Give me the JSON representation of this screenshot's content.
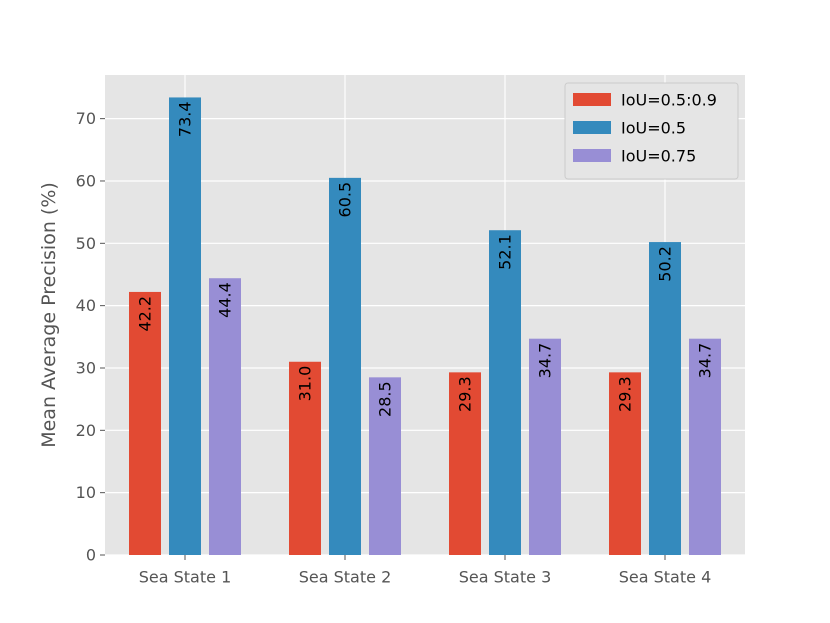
{
  "chart_data": {
    "type": "bar",
    "title": "",
    "xlabel": "",
    "ylabel": "Mean Average Precision (%)",
    "ylim": [
      0,
      77
    ],
    "yticks": [
      0,
      10,
      20,
      30,
      40,
      50,
      60,
      70
    ],
    "categories": [
      "Sea State 1",
      "Sea State 2",
      "Sea State 3",
      "Sea State 4"
    ],
    "series": [
      {
        "name": "IoU=0.5:0.9",
        "color": "#e24a33",
        "values": [
          42.2,
          31.0,
          29.3,
          29.3
        ],
        "labels": [
          "42.2",
          "31.0",
          "29.3",
          "29.3"
        ]
      },
      {
        "name": "IoU=0.5",
        "color": "#348abd",
        "values": [
          73.4,
          60.5,
          52.1,
          50.2
        ],
        "labels": [
          "73.4",
          "60.5",
          "52.1",
          "50.2"
        ]
      },
      {
        "name": "IoU=0.75",
        "color": "#988ed5",
        "values": [
          44.4,
          28.5,
          34.7,
          34.7
        ],
        "labels": [
          "44.4",
          "28.5",
          "34.7",
          "34.7"
        ]
      }
    ],
    "grid": true,
    "legend_position": "top-right",
    "background_color": "#e5e5e5"
  }
}
